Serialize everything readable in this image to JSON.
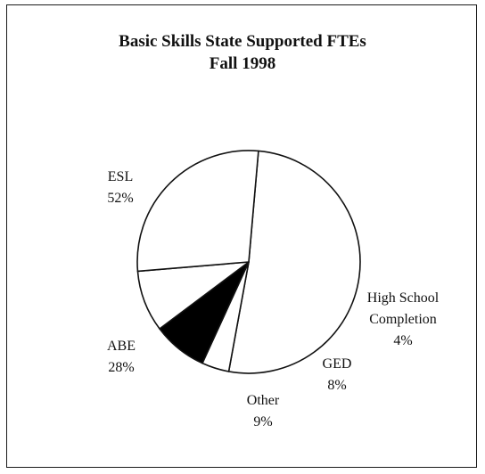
{
  "chart_data": {
    "type": "pie",
    "title": "Basic Skills State Supported FTEs",
    "subtitle": "Fall 1998",
    "slices": [
      {
        "label_lines": [
          "ESL"
        ],
        "percent_label": "52%",
        "value": 52,
        "color": "#ffffff"
      },
      {
        "label_lines": [
          "High School",
          "Completion"
        ],
        "percent_label": "4%",
        "value": 4,
        "color": "#ffffff"
      },
      {
        "label_lines": [
          "GED"
        ],
        "percent_label": "8%",
        "value": 8,
        "color": "#000000"
      },
      {
        "label_lines": [
          "Other"
        ],
        "percent_label": "9%",
        "value": 9,
        "color": "#ffffff"
      },
      {
        "label_lines": [
          "ABE"
        ],
        "percent_label": "28%",
        "value": 28,
        "color": "#ffffff"
      }
    ]
  }
}
